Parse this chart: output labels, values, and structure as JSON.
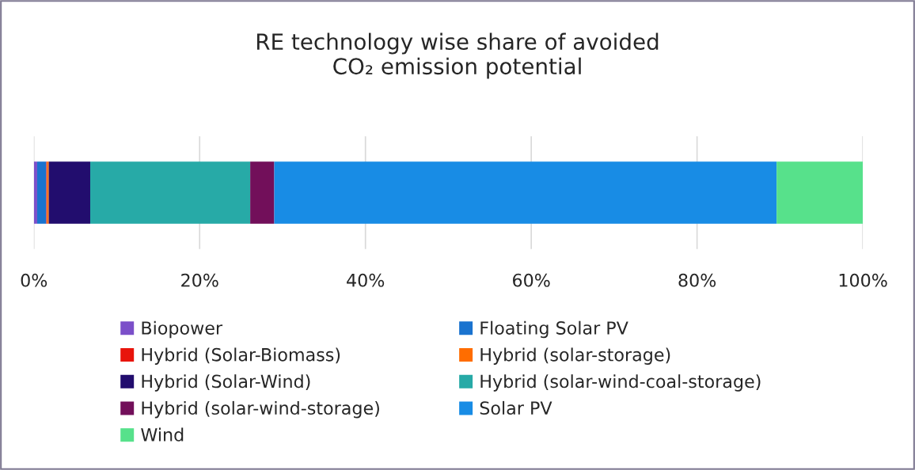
{
  "chart_data": {
    "type": "bar",
    "orientation": "horizontal",
    "stacked": true,
    "title": "RE technology wise share of avoided\nCO₂ emission potential",
    "categories": [
      null
    ],
    "series": [
      {
        "name": "Biopower",
        "color": "#7b4fc9",
        "values": [
          0.4
        ]
      },
      {
        "name": "Floating Solar PV",
        "color": "#1a73cf",
        "values": [
          1.1
        ]
      },
      {
        "name": "Hybrid (Solar-Biomass)",
        "color": "#e8140c",
        "values": [
          0.1
        ]
      },
      {
        "name": "Hybrid (solar-storage)",
        "color": "#ff6d00",
        "values": [
          0.2
        ]
      },
      {
        "name": "Hybrid (Solar-Wind)",
        "color": "#220d6e",
        "values": [
          5.0
        ]
      },
      {
        "name": "Hybrid (solar-wind-coal-storage)",
        "color": "#27aaa7",
        "values": [
          19.3
        ]
      },
      {
        "name": "Hybrid (solar-wind-storage)",
        "color": "#720f5a",
        "values": [
          2.9
        ]
      },
      {
        "name": "Solar PV",
        "color": "#188ce5",
        "values": [
          60.6
        ]
      },
      {
        "name": "Wind",
        "color": "#57e18b",
        "values": [
          10.4
        ]
      }
    ],
    "xlim": [
      0,
      100
    ],
    "xticks": [
      {
        "value": 0,
        "label": "0%"
      },
      {
        "value": 20,
        "label": "20%"
      },
      {
        "value": 40,
        "label": "40%"
      },
      {
        "value": 60,
        "label": "60%"
      },
      {
        "value": 80,
        "label": "80%"
      },
      {
        "value": 100,
        "label": "100%"
      }
    ],
    "grid": "x",
    "legend": "bottom",
    "tick_labels": "x"
  }
}
